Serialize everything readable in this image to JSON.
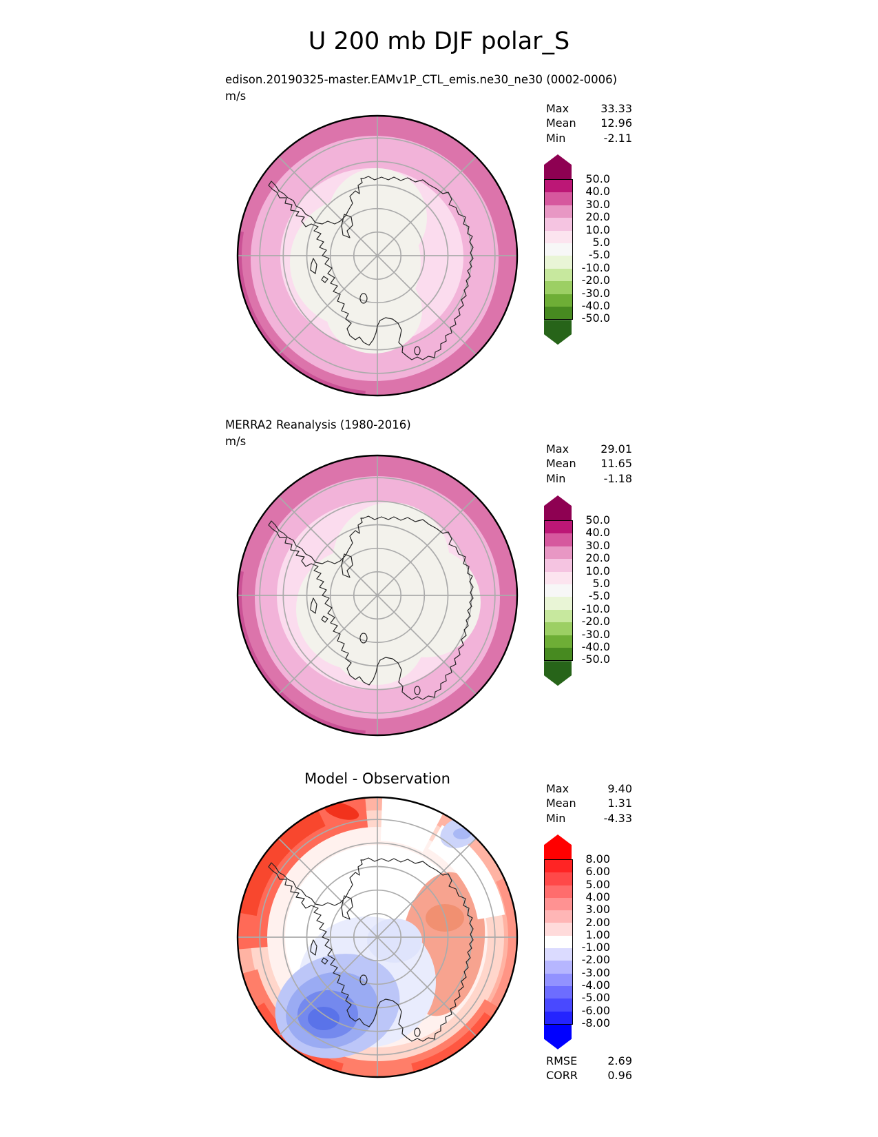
{
  "title": "U 200 mb DJF polar_S",
  "panels": [
    {
      "header": "edison.20190325-master.EAMv1P_CTL_emis.ne30_ne30 (0002-0006)",
      "units": "m/s",
      "stats": [
        {
          "label": "Max",
          "value": "33.33"
        },
        {
          "label": "Mean",
          "value": "12.96"
        },
        {
          "label": "Min",
          "value": "-2.11"
        }
      ],
      "colorbar": {
        "labels": [
          "50.0",
          "40.0",
          "30.0",
          "20.0",
          "10.0",
          "5.0",
          "-5.0",
          "-10.0",
          "-20.0",
          "-30.0",
          "-40.0",
          "-50.0"
        ],
        "colors": [
          "#8e0152",
          "#bc1776",
          "#d6589e",
          "#e897c4",
          "#f5c4e1",
          "#fce4ef",
          "#f7f7f7",
          "#e9f5d6",
          "#c7e89e",
          "#9ccf64",
          "#6eae36",
          "#478a20",
          "#276419"
        ]
      }
    },
    {
      "header": "MERRA2 Reanalysis (1980-2016)",
      "units": "m/s",
      "stats": [
        {
          "label": "Max",
          "value": "29.01"
        },
        {
          "label": "Mean",
          "value": "11.65"
        },
        {
          "label": "Min",
          "value": "-1.18"
        }
      ],
      "colorbar": {
        "labels": [
          "50.0",
          "40.0",
          "30.0",
          "20.0",
          "10.0",
          "5.0",
          "-5.0",
          "-10.0",
          "-20.0",
          "-30.0",
          "-40.0",
          "-50.0"
        ],
        "colors": [
          "#8e0152",
          "#bc1776",
          "#d6589e",
          "#e897c4",
          "#f5c4e1",
          "#fce4ef",
          "#f7f7f7",
          "#e9f5d6",
          "#c7e89e",
          "#9ccf64",
          "#6eae36",
          "#478a20",
          "#276419"
        ]
      }
    },
    {
      "map_title": "Model - Observation",
      "stats": [
        {
          "label": "Max",
          "value": "9.40"
        },
        {
          "label": "Mean",
          "value": "1.31"
        },
        {
          "label": "Min",
          "value": "-4.33"
        }
      ],
      "colorbar": {
        "labels": [
          "8.00",
          "6.00",
          "5.00",
          "4.00",
          "3.00",
          "2.00",
          "1.00",
          "-1.00",
          "-2.00",
          "-3.00",
          "-4.00",
          "-5.00",
          "-6.00",
          "-8.00"
        ],
        "colors": [
          "#ff0000",
          "#ff2424",
          "#ff4949",
          "#ff6d6d",
          "#ff9292",
          "#ffb6b6",
          "#ffdbdb",
          "#ffffff",
          "#dbdbff",
          "#b6b6ff",
          "#9292ff",
          "#6d6dff",
          "#4949ff",
          "#2424ff",
          "#0000ff"
        ]
      },
      "metrics": [
        {
          "label": "RMSE",
          "value": "2.69"
        },
        {
          "label": "CORR",
          "value": "0.96"
        }
      ]
    }
  ],
  "chart_data": [
    {
      "type": "heatmap",
      "title": "edison.20190325-master.EAMv1P_CTL_emis.ne30_ne30 (0002-0006)",
      "figure_title": "U 200 mb DJF polar_S",
      "projection": "south-polar-stereographic",
      "units": "m/s",
      "max": 33.33,
      "mean": 12.96,
      "min": -2.11,
      "contour_levels": [
        -50,
        -40,
        -30,
        -20,
        -10,
        -5,
        5,
        10,
        20,
        30,
        40,
        50
      ],
      "colormap": "PiYG",
      "legend_position": "right"
    },
    {
      "type": "heatmap",
      "title": "MERRA2 Reanalysis (1980-2016)",
      "figure_title": "U 200 mb DJF polar_S",
      "projection": "south-polar-stereographic",
      "units": "m/s",
      "max": 29.01,
      "mean": 11.65,
      "min": -1.18,
      "contour_levels": [
        -50,
        -40,
        -30,
        -20,
        -10,
        -5,
        5,
        10,
        20,
        30,
        40,
        50
      ],
      "colormap": "PiYG",
      "legend_position": "right"
    },
    {
      "type": "heatmap",
      "title": "Model - Observation",
      "figure_title": "U 200 mb DJF polar_S",
      "projection": "south-polar-stereographic",
      "units": "m/s",
      "max": 9.4,
      "mean": 1.31,
      "min": -4.33,
      "rmse": 2.69,
      "corr": 0.96,
      "contour_levels": [
        -8,
        -6,
        -5,
        -4,
        -3,
        -2,
        -1,
        1,
        2,
        3,
        4,
        5,
        6,
        8
      ],
      "colormap": "bwr",
      "legend_position": "right"
    }
  ]
}
